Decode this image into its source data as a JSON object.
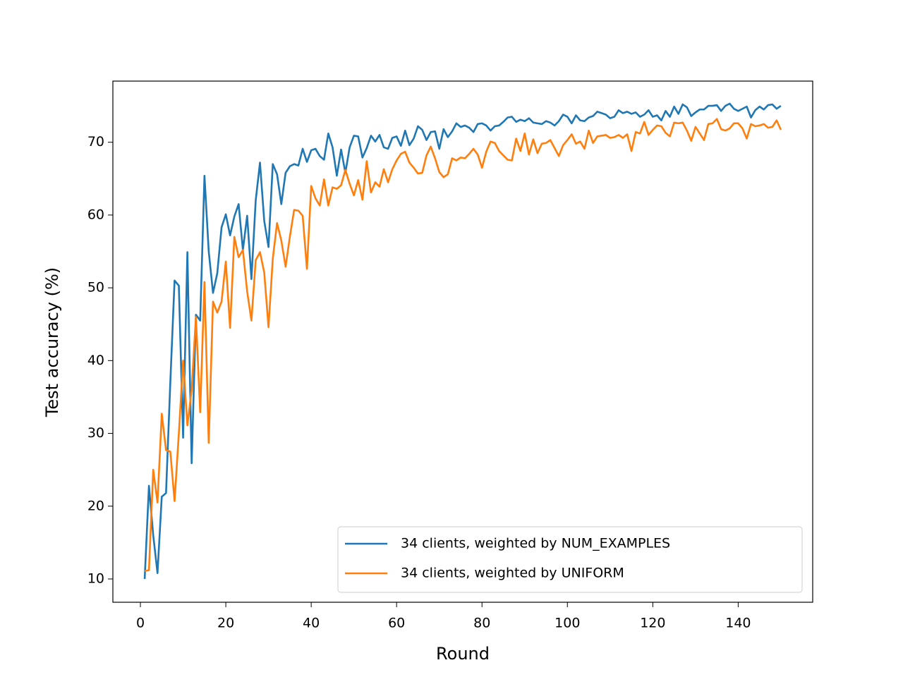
{
  "chart_data": {
    "type": "line",
    "x_label": "Round",
    "y_label": "Test accuracy (%)",
    "x": [
      1,
      2,
      3,
      4,
      5,
      6,
      7,
      8,
      9,
      10,
      11,
      12,
      13,
      14,
      15,
      16,
      17,
      18,
      19,
      20,
      21,
      22,
      23,
      24,
      25,
      26,
      27,
      28,
      29,
      30,
      31,
      32,
      33,
      34,
      35,
      36,
      37,
      38,
      39,
      40,
      41,
      42,
      43,
      44,
      45,
      46,
      47,
      48,
      49,
      50,
      51,
      52,
      53,
      54,
      55,
      56,
      57,
      58,
      59,
      60,
      61,
      62,
      63,
      64,
      65,
      66,
      67,
      68,
      69,
      70,
      71,
      72,
      73,
      74,
      75,
      76,
      77,
      78,
      79,
      80,
      81,
      82,
      83,
      84,
      85,
      86,
      87,
      88,
      89,
      90,
      91,
      92,
      93,
      94,
      95,
      96,
      97,
      98,
      99,
      100,
      101,
      102,
      103,
      104,
      105,
      106,
      107,
      108,
      109,
      110,
      111,
      112,
      113,
      114,
      115,
      116,
      117,
      118,
      119,
      120,
      121,
      122,
      123,
      124,
      125,
      126,
      127,
      128,
      129,
      130,
      131,
      132,
      133,
      134,
      135,
      136,
      137,
      138,
      139,
      140,
      141,
      142,
      143,
      144,
      145,
      146,
      147,
      148,
      149,
      150
    ],
    "series": [
      {
        "name": "34 clients, weighted by NUM_EXAMPLES",
        "color": "#1f77b4",
        "values": [
          10.0,
          22.8,
          16,
          10.8,
          21.3,
          21.8,
          37,
          51,
          50.3,
          29.4,
          54.9,
          25.9,
          46.3,
          45.5,
          65.4,
          55,
          49.3,
          52,
          58.3,
          60.1,
          57.2,
          59.8,
          61.5,
          55.2,
          59.9,
          51.2,
          62,
          67.2,
          59.2,
          55.6,
          67,
          65.6,
          61.5,
          65.8,
          66.7,
          67,
          66.8,
          69.1,
          67.3,
          68.9,
          69.1,
          68.1,
          67.6,
          71.2,
          69.3,
          65.4,
          69,
          65.8,
          69.3,
          70.9,
          70.8,
          67.9,
          69.2,
          70.9,
          70.1,
          71,
          69.3,
          69.1,
          70.6,
          70.8,
          69.5,
          71.6,
          69.6,
          70.5,
          72.2,
          71.7,
          70.3,
          71.4,
          71.5,
          69.1,
          71.8,
          70.7,
          71.5,
          72.6,
          72.1,
          72.3,
          72,
          71.4,
          72.5,
          72.6,
          72.3,
          71.6,
          72.2,
          72.3,
          72.8,
          73.4,
          73.5,
          72.8,
          73.1,
          72.9,
          73.3,
          72.7,
          72.6,
          72.5,
          72.9,
          72.7,
          72.3,
          72.9,
          73.8,
          73.5,
          72.6,
          73.7,
          73,
          72.9,
          73.4,
          73.6,
          74.2,
          74,
          73.8,
          73.3,
          73.5,
          74.4,
          74,
          74.2,
          73.9,
          74.1,
          73.5,
          73.8,
          74.4,
          73.5,
          73.7,
          73,
          74.3,
          73.5,
          74.9,
          73.9,
          75.2,
          74.8,
          73.6,
          74.1,
          74.5,
          74.5,
          75,
          75,
          75.1,
          74.3,
          75,
          75.3,
          74.6,
          74.3,
          74.6,
          74.9,
          73.4,
          74.4,
          74.9,
          74.5,
          75.1,
          75.2,
          74.6,
          75
        ]
      },
      {
        "name": "34 clients, weighted by UNIFORM",
        "color": "#ff7f0e",
        "values": [
          11.1,
          11.2,
          25,
          20.5,
          32.7,
          27.7,
          27.5,
          20.7,
          30,
          40,
          31.1,
          36,
          46,
          32.9,
          50.8,
          28.7,
          48.1,
          46.6,
          48.1,
          53.6,
          44.5,
          57,
          54.2,
          55.2,
          49.5,
          45.5,
          53.8,
          54.9,
          52.1,
          44.6,
          54,
          58.9,
          56.5,
          52.9,
          57,
          60.7,
          60.6,
          59.9,
          52.6,
          64,
          62.3,
          61.3,
          64.9,
          61.3,
          63.8,
          63.6,
          64.1,
          66.2,
          64.3,
          62.7,
          64.8,
          62.1,
          67.4,
          63.1,
          64.5,
          63.9,
          66.3,
          64.5,
          66.3,
          67.5,
          68.4,
          68.7,
          67.2,
          66.5,
          65.7,
          65.8,
          68.2,
          69.4,
          67.8,
          65.9,
          65.2,
          65.6,
          67.8,
          67.5,
          67.9,
          67.8,
          68.4,
          69.1,
          68.3,
          66.5,
          68.7,
          70.1,
          69.9,
          68.8,
          68.2,
          67.6,
          67.5,
          70.5,
          68.8,
          71.2,
          68.3,
          70.4,
          68.5,
          69.8,
          69.9,
          70.3,
          69.2,
          68.1,
          69.6,
          70.3,
          71.1,
          69.8,
          70.1,
          69.1,
          71.6,
          69.9,
          70.8,
          70.9,
          71,
          70.6,
          70.7,
          71,
          70.6,
          71.1,
          68.8,
          71.4,
          71.2,
          72.8,
          71,
          71.7,
          72.3,
          72.2,
          71.3,
          70.8,
          72.7,
          72.6,
          72.7,
          71.6,
          70.2,
          72.1,
          71.2,
          70.3,
          72.5,
          72.6,
          73.2,
          71.8,
          71.6,
          71.9,
          72.6,
          72.6,
          71.9,
          70.5,
          72.5,
          72.2,
          72.3,
          72.5,
          72,
          72.1,
          73,
          71.7
        ]
      }
    ],
    "xlim": [
      -6.45,
      157.45
    ],
    "ylim": [
      6.8,
      78.4
    ],
    "xticks": [
      0,
      20,
      40,
      60,
      80,
      100,
      120,
      140
    ],
    "yticks": [
      10,
      20,
      30,
      40,
      50,
      60,
      70
    ],
    "legend": "lower right"
  }
}
